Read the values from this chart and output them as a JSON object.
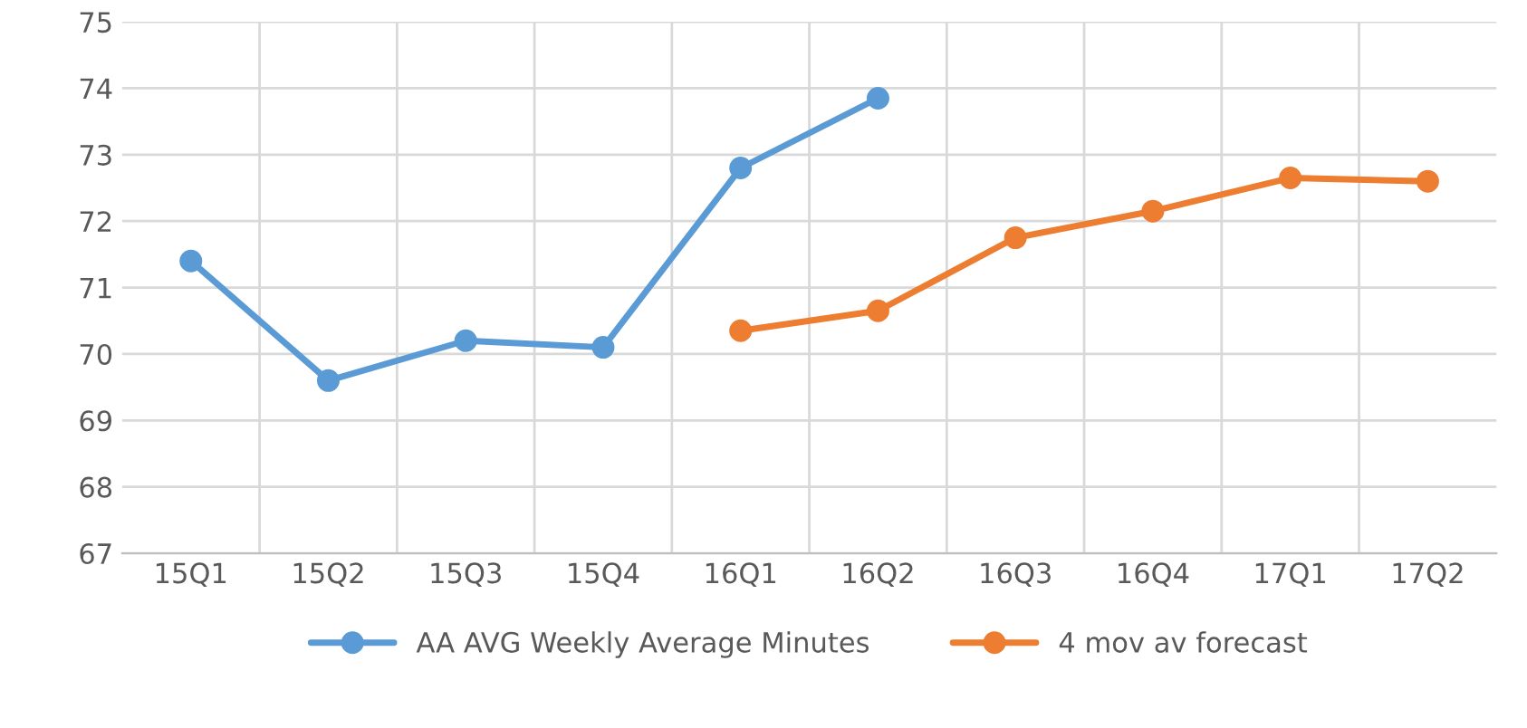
{
  "chart_data": {
    "type": "line",
    "categories": [
      "15Q1",
      "15Q2",
      "15Q3",
      "15Q4",
      "16Q1",
      "16Q2",
      "16Q3",
      "16Q4",
      "17Q1",
      "17Q2"
    ],
    "series": [
      {
        "name": "AA AVG Weekly Average Minutes",
        "color": "#5b9bd5",
        "values": [
          71.4,
          69.6,
          70.2,
          70.1,
          72.8,
          73.85,
          null,
          null,
          null,
          null
        ]
      },
      {
        "name": "4 mov av forecast",
        "color": "#ed7d31",
        "values": [
          null,
          null,
          null,
          null,
          70.35,
          70.65,
          71.75,
          72.15,
          72.65,
          72.6
        ]
      }
    ],
    "ylim": [
      67,
      75
    ],
    "yticks": [
      67,
      68,
      69,
      70,
      71,
      72,
      73,
      74,
      75
    ],
    "grid": true,
    "legend": "bottom",
    "marker": "circle",
    "line_style": "solid"
  }
}
